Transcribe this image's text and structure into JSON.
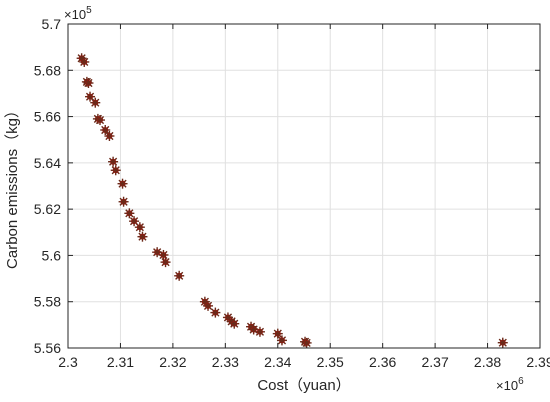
{
  "chart_data": {
    "type": "scatter",
    "title": "",
    "xlabel": "Cost（yuan）",
    "ylabel": "Carbon emissions（kg）",
    "xlim": [
      2.3,
      2.39
    ],
    "ylim": [
      5.56,
      5.7
    ],
    "x_ticks": [
      "2.3",
      "2.31",
      "2.32",
      "2.33",
      "2.34",
      "2.35",
      "2.36",
      "2.37",
      "2.38",
      "2.39"
    ],
    "y_ticks": [
      "5.56",
      "5.58",
      "5.6",
      "5.62",
      "5.64",
      "5.66",
      "5.68",
      "5.7"
    ],
    "x_multiplier": {
      "base": "×10",
      "exp": "6"
    },
    "y_multiplier": {
      "base": "×10",
      "exp": "5"
    },
    "grid": true,
    "marker": "asterisk",
    "colors": {
      "marker_fill": "#d40000",
      "marker_stroke": "#6b2a1a",
      "grid": "#e0e0e0",
      "axis": "#262626"
    },
    "series": [
      {
        "x": [
          2.3026,
          2.3031,
          2.3036,
          2.3039,
          2.3042,
          2.3052,
          2.3057,
          2.3061,
          2.3071,
          2.3079,
          2.3086,
          2.3091,
          2.3104,
          2.3106,
          2.3117,
          2.3126,
          2.3137,
          2.3142,
          2.317,
          2.3182,
          2.3186,
          2.3212,
          2.3261,
          2.3267,
          2.3281,
          2.3305,
          2.3312,
          2.3317,
          2.3349,
          2.3354,
          2.3366,
          2.34,
          2.3408,
          2.3452,
          2.3455,
          2.3829
        ],
        "y": [
          5.6852,
          5.6836,
          5.675,
          5.6745,
          5.6686,
          5.666,
          5.659,
          5.6585,
          5.6542,
          5.6516,
          5.6405,
          5.6368,
          5.631,
          5.6232,
          5.6182,
          5.6148,
          5.6122,
          5.6081,
          5.6014,
          5.6002,
          5.5971,
          5.5912,
          5.58,
          5.5782,
          5.5753,
          5.5732,
          5.5715,
          5.5705,
          5.5692,
          5.568,
          5.567,
          5.5662,
          5.5633,
          5.5627,
          5.5622,
          5.5623
        ]
      }
    ]
  }
}
